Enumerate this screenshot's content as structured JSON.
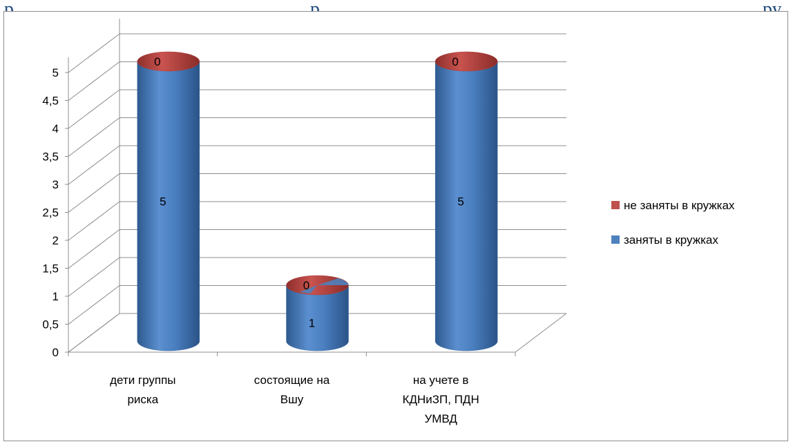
{
  "header": {
    "fragment_left": "р",
    "fragment_mid": "р",
    "fragment_right": "ру"
  },
  "chart_data": {
    "type": "bar",
    "style": "3d-cylinder-stacked",
    "categories": [
      [
        "дети группы",
        "риска"
      ],
      [
        "состоящие на",
        "Вшу"
      ],
      [
        "на учете в",
        "КДНиЗП, ПДН",
        "УМВД"
      ]
    ],
    "series": [
      {
        "name": "заняты в кружках",
        "values": [
          5,
          1,
          5
        ],
        "color": "#4f81bd"
      },
      {
        "name": "не заняты в кружках",
        "values": [
          0,
          0,
          0
        ],
        "color": "#c0504d"
      }
    ],
    "yticks": [
      "0",
      "0,5",
      "1",
      "1,5",
      "2",
      "2,5",
      "3",
      "3,5",
      "4",
      "4,5",
      "5"
    ],
    "ylim": [
      0,
      5
    ],
    "grid": true,
    "legend_position": "right",
    "legend_order": [
      "не заняты в кружках",
      "заняты в кружках"
    ]
  }
}
